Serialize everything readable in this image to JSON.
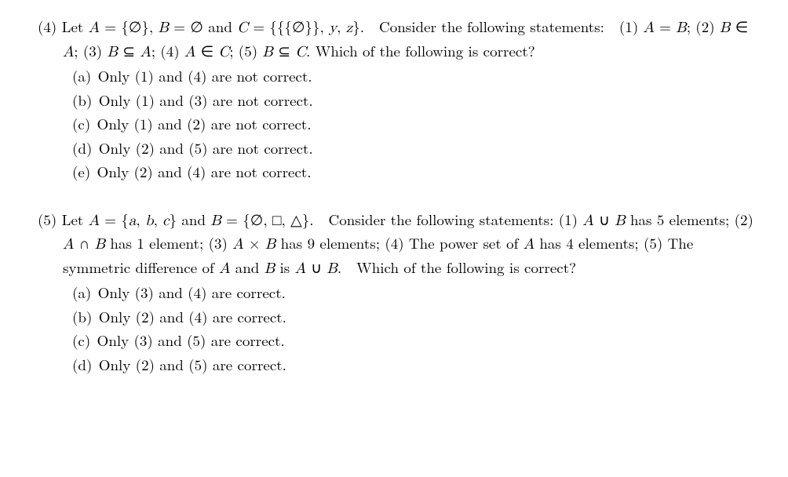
{
  "problems": [
    {
      "number": "(4)",
      "intro_html": "Let <span class=\"math\">A</span> = {<span class=\"rm\">∅</span>}, <span class=\"math\">B</span> = <span class=\"rm\">∅</span> and <span class=\"math\">C</span> = {{{<span class=\"rm\">∅</span>}}, <span class=\"math\">y</span>, <span class=\"math\">z</span>}.&nbsp;&nbsp;Consider the following statements:&nbsp;&nbsp;(1) <span class=\"math\">A</span> = <span class=\"math\">B</span>; (2) <span class=\"math\">B</span> ∈ <span class=\"math\">A</span>; (3) <span class=\"math\">B</span> ⊆ <span class=\"math\">A</span>; (4) <span class=\"math\">A</span> ∈ <span class=\"math\">C</span>; (5) <span class=\"math\">B</span> ⊆ <span class=\"math\">C</span>. Which of the following is correct?",
      "options": [
        {
          "label": "(a)",
          "text": "Only (1) and (4) are not correct."
        },
        {
          "label": "(b)",
          "text": "Only (1) and (3) are not correct."
        },
        {
          "label": "(c)",
          "text": "Only (1) and (2) are not correct."
        },
        {
          "label": "(d)",
          "text": "Only (2) and (5) are not correct."
        },
        {
          "label": "(e)",
          "text": "Only (2) and (4) are not correct."
        }
      ]
    },
    {
      "number": "(5)",
      "intro_html": "Let <span class=\"math\">A</span> = {<span class=\"math\">a</span>, <span class=\"math\">b</span>, <span class=\"math\">c</span>} and <span class=\"math\">B</span> = {<span class=\"rm\">∅</span>, <span class=\"rm\">□</span>, <span class=\"rm\">△</span>}.&nbsp;&nbsp;Consider the following statements: (1) <span class=\"math\">A</span> ∪ <span class=\"math\">B</span> has 5 elements; (2) <span class=\"math\">A</span> ∩ <span class=\"math\">B</span> has 1 element; (3) <span class=\"math\">A</span> × <span class=\"math\">B</span> has 9 elements; (4) The power set of <span class=\"math\">A</span> has 4 elements; (5) The symmetric difference of <span class=\"math\">A</span> and <span class=\"math\">B</span> is <span class=\"math\">A</span> ∪ <span class=\"math\">B</span>.&nbsp;&nbsp;Which of the following is correct?",
      "options": [
        {
          "label": "(a)",
          "text": "Only (3) and (4) are correct."
        },
        {
          "label": "(b)",
          "text": "Only (2) and (4) are correct."
        },
        {
          "label": "(c)",
          "text": "Only (3) and (5) are correct."
        },
        {
          "label": "(d)",
          "text": "Only (2) and (5) are correct."
        }
      ]
    }
  ]
}
